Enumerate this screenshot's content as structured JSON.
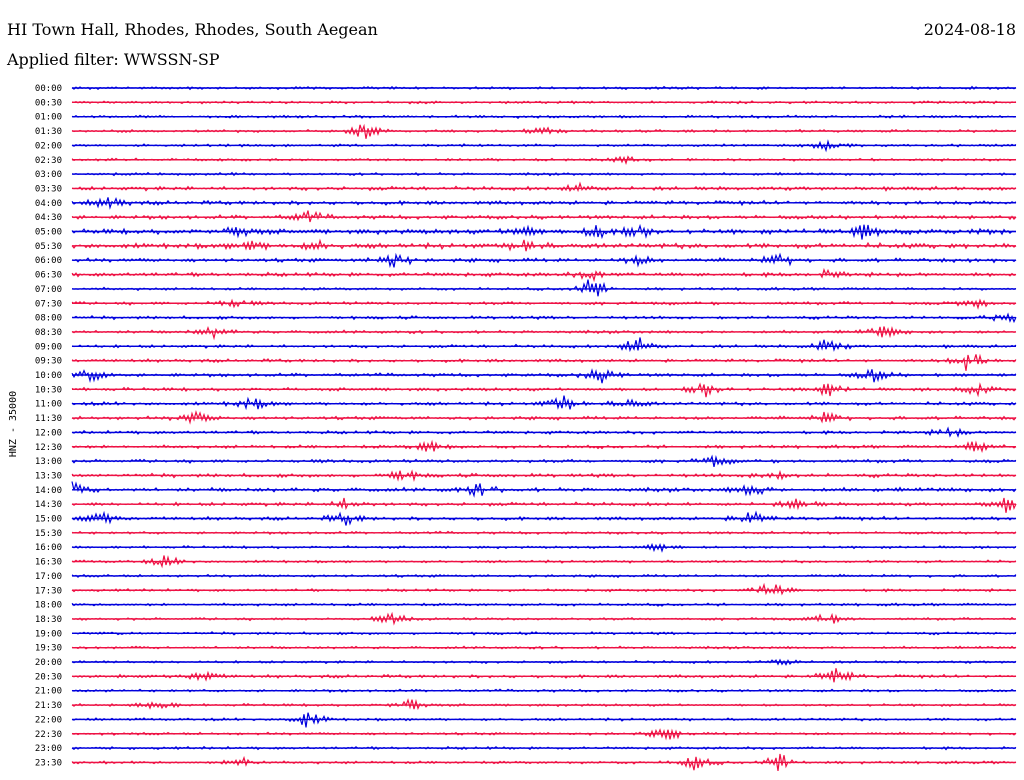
{
  "header": {
    "station": "HI Town Hall, Rhodes, Rhodes, South Aegean",
    "date": "2024-08-18",
    "filter_label": "Applied filter: WWSSN-SP"
  },
  "chart_data": {
    "type": "line",
    "title": "HI Town Hall, Rhodes, Rhodes, South Aegean",
    "ylabel": "HNZ - 35000",
    "row_labels": [
      "00:00",
      "00:30",
      "01:00",
      "01:30",
      "02:00",
      "02:30",
      "03:00",
      "03:30",
      "04:00",
      "04:30",
      "05:00",
      "05:30",
      "06:00",
      "06:30",
      "07:00",
      "07:30",
      "08:00",
      "08:30",
      "09:00",
      "09:30",
      "10:00",
      "10:30",
      "11:00",
      "11:30",
      "12:00",
      "12:30",
      "13:00",
      "13:30",
      "14:00",
      "14:30",
      "15:00",
      "15:30",
      "16:00",
      "16:30",
      "17:00",
      "17:30",
      "18:00",
      "18:30",
      "19:00",
      "19:30",
      "20:00",
      "20:30",
      "21:00",
      "21:30",
      "22:00",
      "22:30",
      "23:00",
      "23:30"
    ],
    "colors": [
      "#0000dd",
      "#ee1144"
    ],
    "row_noise": [
      1,
      1,
      1,
      1,
      1,
      1,
      1,
      1.5,
      1.5,
      1.5,
      2,
      2,
      1.5,
      1.5,
      1,
      1.2,
      1.2,
      1.2,
      1.2,
      1.2,
      1.3,
      1.3,
      1.3,
      1.3,
      1.2,
      1.2,
      1.3,
      1.4,
      1.6,
      1.4,
      1.3,
      1,
      1,
      1,
      1,
      1,
      1,
      1,
      1,
      1,
      1,
      1.2,
      1,
      1,
      1,
      1,
      1,
      1
    ],
    "events": [
      {
        "row": 3,
        "t": 0.31,
        "amp": 9
      },
      {
        "row": 3,
        "t": 0.5,
        "amp": 4
      },
      {
        "row": 4,
        "t": 0.8,
        "amp": 5
      },
      {
        "row": 5,
        "t": 0.59,
        "amp": 4
      },
      {
        "row": 7,
        "t": 0.54,
        "amp": 6
      },
      {
        "row": 8,
        "t": 0.04,
        "amp": 6
      },
      {
        "row": 9,
        "t": 0.25,
        "amp": 6
      },
      {
        "row": 10,
        "t": 0.18,
        "amp": 6
      },
      {
        "row": 10,
        "t": 0.48,
        "amp": 6
      },
      {
        "row": 10,
        "t": 0.56,
        "amp": 8
      },
      {
        "row": 10,
        "t": 0.6,
        "amp": 7
      },
      {
        "row": 10,
        "t": 0.84,
        "amp": 8
      },
      {
        "row": 11,
        "t": 0.19,
        "amp": 5
      },
      {
        "row": 11,
        "t": 0.26,
        "amp": 5
      },
      {
        "row": 11,
        "t": 0.48,
        "amp": 5
      },
      {
        "row": 12,
        "t": 0.34,
        "amp": 9
      },
      {
        "row": 12,
        "t": 0.6,
        "amp": 5
      },
      {
        "row": 12,
        "t": 0.75,
        "amp": 7
      },
      {
        "row": 13,
        "t": 0.55,
        "amp": 5
      },
      {
        "row": 13,
        "t": 0.8,
        "amp": 4
      },
      {
        "row": 14,
        "t": 0.55,
        "amp": 12
      },
      {
        "row": 15,
        "t": 0.17,
        "amp": 5
      },
      {
        "row": 15,
        "t": 0.96,
        "amp": 6
      },
      {
        "row": 16,
        "t": 0.99,
        "amp": 8
      },
      {
        "row": 17,
        "t": 0.15,
        "amp": 6
      },
      {
        "row": 17,
        "t": 0.86,
        "amp": 7
      },
      {
        "row": 18,
        "t": 0.6,
        "amp": 12
      },
      {
        "row": 18,
        "t": 0.8,
        "amp": 8
      },
      {
        "row": 19,
        "t": 0.95,
        "amp": 12
      },
      {
        "row": 20,
        "t": 0.02,
        "amp": 7
      },
      {
        "row": 20,
        "t": 0.56,
        "amp": 8
      },
      {
        "row": 20,
        "t": 0.85,
        "amp": 7
      },
      {
        "row": 21,
        "t": 0.67,
        "amp": 9
      },
      {
        "row": 21,
        "t": 0.8,
        "amp": 7
      },
      {
        "row": 21,
        "t": 0.96,
        "amp": 5
      },
      {
        "row": 22,
        "t": 0.19,
        "amp": 7
      },
      {
        "row": 22,
        "t": 0.52,
        "amp": 8
      },
      {
        "row": 22,
        "t": 0.59,
        "amp": 5
      },
      {
        "row": 23,
        "t": 0.13,
        "amp": 7
      },
      {
        "row": 23,
        "t": 0.8,
        "amp": 6
      },
      {
        "row": 24,
        "t": 0.93,
        "amp": 5
      },
      {
        "row": 25,
        "t": 0.38,
        "amp": 6
      },
      {
        "row": 25,
        "t": 0.96,
        "amp": 7
      },
      {
        "row": 26,
        "t": 0.68,
        "amp": 5
      },
      {
        "row": 27,
        "t": 0.35,
        "amp": 7
      },
      {
        "row": 27,
        "t": 0.74,
        "amp": 6
      },
      {
        "row": 28,
        "t": 0.0,
        "amp": 7
      },
      {
        "row": 28,
        "t": 0.43,
        "amp": 6
      },
      {
        "row": 28,
        "t": 0.72,
        "amp": 6
      },
      {
        "row": 29,
        "t": 0.29,
        "amp": 6
      },
      {
        "row": 29,
        "t": 0.77,
        "amp": 6
      },
      {
        "row": 29,
        "t": 0.99,
        "amp": 7
      },
      {
        "row": 30,
        "t": 0.03,
        "amp": 7
      },
      {
        "row": 30,
        "t": 0.29,
        "amp": 7
      },
      {
        "row": 30,
        "t": 0.72,
        "amp": 7
      },
      {
        "row": 32,
        "t": 0.62,
        "amp": 5
      },
      {
        "row": 33,
        "t": 0.1,
        "amp": 6
      },
      {
        "row": 35,
        "t": 0.74,
        "amp": 9
      },
      {
        "row": 37,
        "t": 0.34,
        "amp": 6
      },
      {
        "row": 37,
        "t": 0.8,
        "amp": 6
      },
      {
        "row": 40,
        "t": 0.75,
        "amp": 5
      },
      {
        "row": 41,
        "t": 0.14,
        "amp": 6
      },
      {
        "row": 41,
        "t": 0.81,
        "amp": 9
      },
      {
        "row": 43,
        "t": 0.09,
        "amp": 6
      },
      {
        "row": 43,
        "t": 0.36,
        "amp": 6
      },
      {
        "row": 44,
        "t": 0.25,
        "amp": 9
      },
      {
        "row": 45,
        "t": 0.63,
        "amp": 7
      },
      {
        "row": 47,
        "t": 0.18,
        "amp": 6
      },
      {
        "row": 47,
        "t": 0.66,
        "amp": 8
      },
      {
        "row": 47,
        "t": 0.75,
        "amp": 9
      }
    ]
  }
}
